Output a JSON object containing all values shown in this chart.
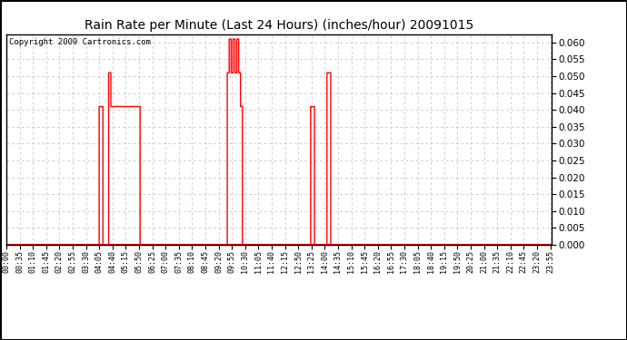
{
  "title": "Rain Rate per Minute (Last 24 Hours) (inches/hour) 20091015",
  "copyright": "Copyright 2009 Cartronics.com",
  "background_color": "#ffffff",
  "plot_bg_color": "#ffffff",
  "line_color": "#ff0000",
  "grid_color": "#bbbbbb",
  "ylim": [
    0.0,
    0.0625
  ],
  "yticks": [
    0.0,
    0.005,
    0.01,
    0.015,
    0.02,
    0.025,
    0.03,
    0.035,
    0.04,
    0.045,
    0.05,
    0.055,
    0.06
  ],
  "xtick_labels": [
    "00:00",
    "00:35",
    "01:10",
    "01:45",
    "02:20",
    "02:55",
    "03:30",
    "04:05",
    "04:40",
    "05:15",
    "05:50",
    "06:25",
    "07:00",
    "07:35",
    "08:10",
    "08:45",
    "09:20",
    "09:55",
    "10:30",
    "11:05",
    "11:40",
    "12:15",
    "12:50",
    "13:25",
    "14:00",
    "14:35",
    "15:10",
    "15:45",
    "16:20",
    "16:55",
    "17:30",
    "18:05",
    "18:40",
    "19:15",
    "19:50",
    "20:25",
    "21:00",
    "21:35",
    "22:10",
    "22:45",
    "23:20",
    "23:55"
  ],
  "rain_values": [
    0,
    0,
    0,
    0,
    0,
    0,
    0,
    0,
    0,
    0,
    0,
    0,
    0,
    0,
    0,
    0,
    0,
    0,
    0,
    0,
    0,
    0,
    0,
    0,
    0,
    0,
    0,
    0,
    0,
    0,
    0,
    0,
    0,
    0,
    0,
    0,
    0,
    0,
    0,
    0,
    0,
    0,
    0,
    0,
    0,
    0,
    0,
    0,
    0,
    0,
    0,
    0,
    0,
    0,
    0,
    0,
    0,
    0,
    0,
    0,
    0,
    0,
    0,
    0,
    0,
    0,
    0,
    0,
    0,
    0,
    0,
    0,
    0,
    0,
    0,
    0,
    0,
    0,
    0,
    0,
    0,
    0,
    0,
    0,
    0,
    0,
    0,
    0,
    0,
    0,
    0,
    0,
    0,
    0,
    0,
    0,
    0,
    0,
    0,
    0,
    0,
    0,
    0,
    0,
    0,
    0,
    0,
    0,
    0,
    0,
    0,
    0,
    0,
    0,
    0,
    0,
    0,
    0,
    0,
    0,
    0,
    0,
    0,
    0,
    0,
    0,
    0,
    0,
    0,
    0,
    0,
    0,
    0,
    0,
    0,
    0,
    0,
    0,
    0,
    0,
    0,
    0,
    0,
    0,
    0,
    0,
    0,
    0,
    0,
    0,
    0,
    0,
    0,
    0,
    0,
    0,
    0,
    0,
    0,
    0,
    0,
    0,
    0,
    0,
    0,
    0,
    0,
    0,
    0,
    0,
    0,
    0,
    0,
    0,
    0,
    0,
    0,
    0,
    0,
    0,
    0,
    0,
    0,
    0,
    0,
    0,
    0,
    0,
    0,
    0,
    0,
    0,
    0,
    0,
    0,
    0,
    0,
    0,
    0,
    0,
    0,
    0,
    0,
    0,
    0,
    0,
    0,
    0,
    0,
    0,
    0,
    0,
    0,
    0,
    0,
    0,
    0,
    0,
    0,
    0,
    0,
    0,
    0,
    0,
    0,
    0,
    0,
    0,
    0,
    0,
    0,
    0,
    0,
    0,
    0,
    0,
    0,
    0,
    0,
    0,
    0,
    0,
    0,
    0,
    0,
    0.041,
    0.041,
    0.041,
    0.041,
    0.041,
    0.041,
    0.041,
    0.041,
    0.041,
    0.041,
    0,
    0,
    0,
    0,
    0,
    0,
    0,
    0,
    0,
    0,
    0,
    0,
    0,
    0,
    0,
    0.051,
    0.051,
    0.051,
    0.051,
    0.051,
    0.051,
    0.041,
    0.041,
    0.041,
    0.041,
    0.041,
    0.041,
    0.041,
    0.041,
    0.041,
    0.041,
    0.041,
    0.041,
    0.041,
    0.041,
    0.041,
    0.041,
    0.041,
    0.041,
    0.041,
    0.041,
    0.041,
    0.041,
    0.041,
    0.041,
    0.041,
    0.041,
    0.041,
    0.041,
    0.041,
    0.041,
    0.041,
    0.041,
    0.041,
    0.041,
    0.041,
    0.041,
    0.041,
    0.041,
    0.041,
    0.041,
    0.041,
    0.041,
    0.041,
    0.041,
    0.041,
    0.041,
    0.041,
    0.041,
    0.041,
    0.041,
    0.041,
    0.041,
    0.041,
    0.041,
    0.041,
    0.041,
    0.041,
    0.041,
    0.041,
    0.041,
    0.041,
    0.041,
    0.041,
    0.041,
    0.041,
    0.041,
    0.041,
    0.041,
    0.041,
    0.041,
    0.041,
    0.041,
    0.041,
    0.041,
    0.041,
    0.041,
    0.041,
    0,
    0,
    0,
    0,
    0,
    0,
    0,
    0,
    0,
    0,
    0,
    0,
    0,
    0,
    0,
    0,
    0,
    0,
    0,
    0,
    0,
    0,
    0,
    0,
    0,
    0,
    0,
    0,
    0,
    0,
    0,
    0,
    0,
    0,
    0,
    0,
    0,
    0,
    0,
    0,
    0,
    0,
    0,
    0,
    0,
    0,
    0,
    0,
    0,
    0,
    0,
    0,
    0,
    0,
    0,
    0,
    0,
    0,
    0,
    0,
    0,
    0,
    0,
    0,
    0,
    0,
    0,
    0,
    0,
    0,
    0,
    0,
    0,
    0,
    0,
    0,
    0,
    0,
    0,
    0,
    0,
    0,
    0,
    0,
    0,
    0,
    0,
    0,
    0,
    0,
    0,
    0,
    0,
    0,
    0,
    0,
    0,
    0,
    0,
    0,
    0,
    0,
    0,
    0,
    0,
    0,
    0,
    0,
    0,
    0,
    0,
    0,
    0,
    0,
    0,
    0,
    0,
    0,
    0,
    0,
    0,
    0,
    0,
    0,
    0,
    0,
    0,
    0,
    0,
    0,
    0,
    0,
    0,
    0,
    0,
    0,
    0,
    0,
    0,
    0,
    0,
    0,
    0,
    0,
    0,
    0,
    0,
    0,
    0,
    0,
    0,
    0,
    0,
    0,
    0,
    0,
    0,
    0,
    0,
    0,
    0,
    0,
    0,
    0,
    0,
    0,
    0,
    0,
    0,
    0,
    0,
    0,
    0,
    0,
    0,
    0,
    0,
    0,
    0,
    0,
    0,
    0,
    0,
    0,
    0,
    0,
    0,
    0,
    0,
    0,
    0,
    0,
    0,
    0,
    0,
    0,
    0,
    0,
    0,
    0,
    0,
    0,
    0,
    0,
    0,
    0,
    0,
    0,
    0,
    0,
    0,
    0,
    0,
    0,
    0,
    0,
    0,
    0,
    0,
    0,
    0,
    0,
    0,
    0,
    0,
    0,
    0,
    0,
    0,
    0,
    0.051,
    0.051,
    0.051,
    0.051,
    0.051,
    0.061,
    0.061,
    0.061,
    0.061,
    0.061,
    0.051,
    0.051,
    0.051,
    0.051,
    0.051,
    0.061,
    0.061,
    0.061,
    0.061,
    0.061,
    0.051,
    0.051,
    0.051,
    0.051,
    0.051,
    0.061,
    0.061,
    0.061,
    0.061,
    0.061,
    0.051,
    0.051,
    0.051,
    0.051,
    0.051,
    0.041,
    0.041,
    0.041,
    0.041,
    0.041,
    0,
    0,
    0,
    0,
    0,
    0,
    0,
    0,
    0,
    0,
    0,
    0,
    0,
    0,
    0,
    0,
    0,
    0,
    0,
    0,
    0,
    0,
    0,
    0,
    0,
    0,
    0,
    0,
    0,
    0,
    0,
    0,
    0,
    0,
    0,
    0,
    0,
    0,
    0,
    0,
    0,
    0,
    0,
    0,
    0,
    0,
    0,
    0,
    0,
    0,
    0,
    0,
    0,
    0,
    0,
    0,
    0,
    0,
    0,
    0,
    0,
    0,
    0,
    0,
    0,
    0,
    0,
    0,
    0,
    0,
    0,
    0,
    0,
    0,
    0,
    0,
    0,
    0,
    0,
    0,
    0,
    0,
    0,
    0,
    0,
    0,
    0,
    0,
    0,
    0,
    0,
    0,
    0,
    0,
    0,
    0,
    0,
    0,
    0,
    0,
    0,
    0,
    0,
    0,
    0,
    0,
    0,
    0,
    0,
    0,
    0,
    0,
    0,
    0,
    0,
    0,
    0,
    0,
    0,
    0,
    0,
    0,
    0,
    0,
    0,
    0,
    0,
    0,
    0,
    0,
    0,
    0,
    0,
    0,
    0,
    0,
    0,
    0,
    0,
    0,
    0,
    0,
    0,
    0,
    0,
    0,
    0,
    0,
    0,
    0,
    0,
    0,
    0,
    0,
    0,
    0,
    0,
    0,
    0,
    0,
    0,
    0,
    0,
    0,
    0,
    0,
    0,
    0,
    0,
    0,
    0,
    0,
    0,
    0,
    0,
    0,
    0,
    0,
    0,
    0,
    0.041,
    0.041,
    0.041,
    0.041,
    0.041,
    0.041,
    0.041,
    0.041,
    0.041,
    0.041,
    0,
    0,
    0,
    0,
    0,
    0,
    0,
    0,
    0,
    0,
    0,
    0,
    0,
    0,
    0,
    0,
    0,
    0,
    0,
    0,
    0,
    0,
    0,
    0,
    0,
    0,
    0,
    0,
    0,
    0,
    0,
    0,
    0,
    0.051,
    0.051,
    0.051,
    0.051,
    0.051,
    0.051,
    0.051,
    0.051,
    0.051,
    0.051,
    0,
    0,
    0,
    0,
    0,
    0,
    0,
    0,
    0,
    0,
    0,
    0,
    0,
    0,
    0,
    0,
    0,
    0,
    0,
    0,
    0,
    0,
    0,
    0,
    0,
    0,
    0,
    0,
    0,
    0,
    0,
    0,
    0,
    0,
    0,
    0,
    0,
    0,
    0,
    0,
    0,
    0,
    0,
    0,
    0,
    0,
    0,
    0,
    0,
    0,
    0,
    0,
    0,
    0,
    0,
    0,
    0,
    0,
    0,
    0,
    0,
    0,
    0,
    0,
    0,
    0,
    0,
    0,
    0,
    0,
    0,
    0,
    0,
    0,
    0,
    0,
    0,
    0,
    0,
    0,
    0,
    0,
    0,
    0,
    0,
    0,
    0,
    0,
    0,
    0,
    0,
    0,
    0,
    0,
    0,
    0,
    0,
    0,
    0,
    0,
    0,
    0,
    0,
    0,
    0,
    0,
    0,
    0,
    0,
    0,
    0,
    0,
    0,
    0,
    0,
    0,
    0,
    0,
    0,
    0,
    0,
    0,
    0,
    0,
    0,
    0,
    0,
    0,
    0,
    0,
    0,
    0,
    0,
    0,
    0,
    0,
    0,
    0,
    0,
    0,
    0,
    0,
    0,
    0,
    0,
    0,
    0,
    0,
    0,
    0,
    0,
    0,
    0,
    0,
    0,
    0,
    0,
    0,
    0,
    0,
    0,
    0,
    0,
    0,
    0,
    0,
    0,
    0,
    0,
    0,
    0,
    0,
    0,
    0,
    0,
    0,
    0,
    0,
    0,
    0,
    0,
    0,
    0,
    0,
    0,
    0,
    0,
    0,
    0,
    0,
    0,
    0,
    0,
    0,
    0,
    0,
    0,
    0,
    0,
    0,
    0,
    0,
    0,
    0,
    0,
    0,
    0,
    0,
    0,
    0,
    0,
    0,
    0,
    0,
    0,
    0,
    0,
    0,
    0,
    0,
    0,
    0,
    0,
    0,
    0,
    0,
    0,
    0,
    0,
    0,
    0,
    0,
    0,
    0,
    0,
    0,
    0,
    0,
    0,
    0,
    0,
    0,
    0,
    0,
    0,
    0,
    0,
    0,
    0,
    0,
    0,
    0,
    0,
    0,
    0,
    0,
    0,
    0,
    0,
    0,
    0,
    0,
    0,
    0,
    0,
    0,
    0,
    0,
    0,
    0,
    0,
    0,
    0,
    0,
    0,
    0,
    0,
    0,
    0,
    0,
    0,
    0,
    0,
    0,
    0,
    0,
    0,
    0,
    0,
    0,
    0,
    0,
    0,
    0,
    0,
    0,
    0,
    0,
    0,
    0,
    0,
    0,
    0,
    0,
    0,
    0,
    0,
    0,
    0,
    0,
    0,
    0,
    0,
    0,
    0,
    0,
    0,
    0,
    0,
    0,
    0,
    0,
    0,
    0,
    0,
    0,
    0,
    0,
    0,
    0,
    0,
    0,
    0,
    0,
    0,
    0,
    0,
    0,
    0,
    0,
    0,
    0,
    0,
    0,
    0,
    0,
    0,
    0,
    0,
    0,
    0,
    0,
    0,
    0,
    0,
    0,
    0,
    0,
    0,
    0,
    0,
    0,
    0,
    0,
    0,
    0,
    0,
    0,
    0,
    0,
    0,
    0,
    0,
    0,
    0,
    0,
    0,
    0,
    0,
    0,
    0,
    0,
    0,
    0,
    0,
    0,
    0,
    0,
    0
  ]
}
